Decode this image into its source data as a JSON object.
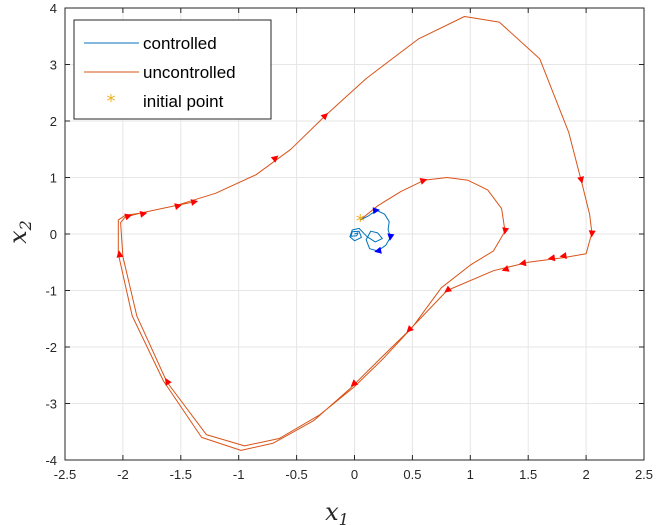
{
  "chart_data": {
    "type": "line",
    "title": "",
    "xlabel": {
      "base": "x",
      "sub": "1"
    },
    "ylabel": {
      "base": "x",
      "sub": "2"
    },
    "xlim": [
      -2.5,
      2.5
    ],
    "ylim": [
      -4,
      4
    ],
    "xticks": [
      -2.5,
      -2,
      -1.5,
      -1,
      -0.5,
      0,
      0.5,
      1,
      1.5,
      2,
      2.5
    ],
    "xtick_labels": [
      "-2.5",
      "-2",
      "-1.5",
      "-1",
      "-0.5",
      "0",
      "0.5",
      "1",
      "1.5",
      "2",
      "2.5"
    ],
    "yticks": [
      -4,
      -3,
      -2,
      -1,
      0,
      1,
      2,
      3,
      4
    ],
    "ytick_labels": [
      "-4",
      "-3",
      "-2",
      "-1",
      "0",
      "1",
      "2",
      "3",
      "4"
    ],
    "grid": true,
    "legend_position": "top-left",
    "series": [
      {
        "name": "controlled",
        "color": "#0072bd",
        "points": [
          [
            0.05,
            0.25
          ],
          [
            0.12,
            0.32
          ],
          [
            0.19,
            0.42
          ],
          [
            0.26,
            0.35
          ],
          [
            0.3,
            0.22
          ],
          [
            0.29,
            0.08
          ],
          [
            0.31,
            -0.06
          ],
          [
            0.27,
            -0.2
          ],
          [
            0.2,
            -0.3
          ],
          [
            0.13,
            -0.26
          ],
          [
            0.1,
            -0.1
          ],
          [
            0.14,
            0.05
          ],
          [
            0.2,
            0.02
          ],
          [
            0.24,
            -0.08
          ],
          [
            0.18,
            -0.14
          ],
          [
            0.11,
            -0.05
          ],
          [
            0.04,
            0.1
          ],
          [
            -0.02,
            0.07
          ],
          [
            -0.04,
            -0.05
          ],
          [
            0.0,
            -0.12
          ],
          [
            0.06,
            -0.06
          ],
          [
            0.04,
            0.05
          ],
          [
            -0.02,
            0.04
          ],
          [
            -0.03,
            -0.04
          ],
          [
            0.02,
            -0.03
          ],
          [
            0.03,
            0.02
          ],
          [
            0.0,
            0.0
          ]
        ],
        "arrows": [
          [
            0.19,
            0.42
          ],
          [
            0.31,
            -0.06
          ],
          [
            0.2,
            -0.3
          ]
        ]
      },
      {
        "name": "uncontrolled",
        "color": "#d95319",
        "points": [
          [
            0.05,
            0.25
          ],
          [
            0.2,
            0.5
          ],
          [
            0.4,
            0.75
          ],
          [
            0.6,
            0.95
          ],
          [
            0.8,
            1.0
          ],
          [
            0.98,
            0.95
          ],
          [
            1.15,
            0.78
          ],
          [
            1.27,
            0.45
          ],
          [
            1.3,
            0.05
          ],
          [
            1.2,
            -0.3
          ],
          [
            1.0,
            -0.55
          ],
          [
            0.75,
            -0.95
          ],
          [
            0.5,
            -1.65
          ],
          [
            0.25,
            -2.2
          ],
          [
            0.0,
            -2.7
          ],
          [
            -0.3,
            -3.2
          ],
          [
            -0.65,
            -3.62
          ],
          [
            -0.95,
            -3.75
          ],
          [
            -1.28,
            -3.55
          ],
          [
            -1.62,
            -2.62
          ],
          [
            -1.88,
            -1.45
          ],
          [
            -2.0,
            -0.4
          ],
          [
            -2.02,
            0.2
          ],
          [
            -1.98,
            0.3
          ],
          [
            -1.85,
            0.37
          ],
          [
            -1.55,
            0.5
          ],
          [
            -1.2,
            0.72
          ],
          [
            -0.85,
            1.05
          ],
          [
            -0.55,
            1.5
          ],
          [
            -0.25,
            2.1
          ],
          [
            0.1,
            2.75
          ],
          [
            0.55,
            3.45
          ],
          [
            0.95,
            3.85
          ],
          [
            1.25,
            3.75
          ],
          [
            1.6,
            3.1
          ],
          [
            1.85,
            1.8
          ],
          [
            1.97,
            0.85
          ],
          [
            2.03,
            0.35
          ],
          [
            2.05,
            0.02
          ],
          [
            2.0,
            -0.35
          ],
          [
            1.8,
            -0.42
          ],
          [
            1.5,
            -0.5
          ],
          [
            1.2,
            -0.65
          ],
          [
            0.8,
            -1.0
          ],
          [
            0.45,
            -1.75
          ],
          [
            0.2,
            -2.25
          ],
          [
            -0.03,
            -2.72
          ],
          [
            -0.35,
            -3.3
          ],
          [
            -0.7,
            -3.7
          ],
          [
            -0.98,
            -3.83
          ],
          [
            -1.32,
            -3.6
          ],
          [
            -1.65,
            -2.6
          ],
          [
            -1.92,
            -1.45
          ],
          [
            -2.04,
            -0.35
          ],
          [
            -2.04,
            0.25
          ],
          [
            -1.98,
            0.33
          ],
          [
            -1.85,
            0.37
          ],
          [
            -1.55,
            0.5
          ],
          [
            -1.38,
            0.57
          ]
        ],
        "arrows": [
          [
            0.6,
            0.95
          ],
          [
            1.3,
            0.05
          ],
          [
            0.8,
            -1.0
          ],
          [
            0.47,
            -1.7
          ],
          [
            -0.01,
            -2.66
          ],
          [
            -1.62,
            -2.6
          ],
          [
            -2.03,
            -0.35
          ],
          [
            -1.95,
            0.32
          ],
          [
            -1.82,
            0.36
          ],
          [
            -1.52,
            0.5
          ],
          [
            -1.38,
            0.57
          ],
          [
            -0.68,
            1.35
          ],
          [
            -0.25,
            2.1
          ],
          [
            1.96,
            0.95
          ],
          [
            2.05,
            0.0
          ],
          [
            1.8,
            -0.39
          ],
          [
            1.7,
            -0.43
          ],
          [
            1.45,
            -0.52
          ],
          [
            1.3,
            -0.63
          ]
        ]
      },
      {
        "name": "initial point",
        "color": "#edb120",
        "points": [
          [
            0.05,
            0.25
          ]
        ]
      }
    ]
  }
}
